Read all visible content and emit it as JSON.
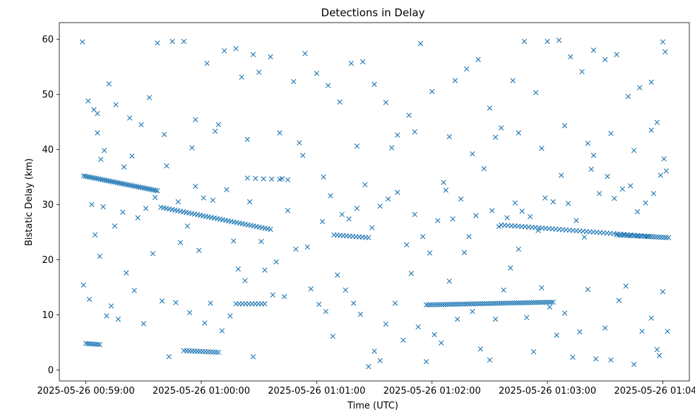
{
  "chart_data": {
    "type": "scatter",
    "title": "Detections in Delay",
    "xlabel": "Time (UTC)",
    "ylabel": "Bistatic Delay (km)",
    "marker": "x",
    "color": "#1f77b4",
    "x_unit": "minutes since 2025-05-26 00:59:00",
    "xlim": [
      -0.23,
      5.23
    ],
    "ylim": [
      -2,
      63
    ],
    "x_ticks": [
      {
        "value": 0,
        "label": "2025-05-26 00:59:00"
      },
      {
        "value": 1,
        "label": "2025-05-26 01:00:00"
      },
      {
        "value": 2,
        "label": "2025-05-26 01:01:00"
      },
      {
        "value": 3,
        "label": "2025-05-26 01:02:00"
      },
      {
        "value": 4,
        "label": "2025-05-26 01:03:00"
      },
      {
        "value": 5,
        "label": "2025-05-26 01:04:00"
      }
    ],
    "y_ticks": [
      {
        "value": 0,
        "label": "0"
      },
      {
        "value": 10,
        "label": "10"
      },
      {
        "value": 20,
        "label": "20"
      },
      {
        "value": 30,
        "label": "30"
      },
      {
        "value": 40,
        "label": "40"
      },
      {
        "value": 50,
        "label": "50"
      },
      {
        "value": 60,
        "label": "60"
      }
    ],
    "grid": false,
    "tracks": [
      {
        "name": "track-a",
        "x_start": -0.02,
        "x_end": 0.62,
        "y_start": 35.2,
        "y_end": 32.5,
        "count": 40
      },
      {
        "name": "track-b",
        "x_start": 0.65,
        "x_end": 1.6,
        "y_start": 29.5,
        "y_end": 25.5,
        "count": 40
      },
      {
        "name": "track-c",
        "x_start": 3.6,
        "x_end": 4.9,
        "y_start": 26.3,
        "y_end": 24.2,
        "count": 45
      },
      {
        "name": "track-d",
        "x_start": 2.95,
        "x_end": 4.05,
        "y_start": 11.8,
        "y_end": 12.3,
        "count": 60
      },
      {
        "name": "track-e",
        "x_start": 0.85,
        "x_end": 1.15,
        "y_start": 3.5,
        "y_end": 3.2,
        "count": 14
      },
      {
        "name": "track-f",
        "x_start": 4.6,
        "x_end": 5.05,
        "y_start": 24.5,
        "y_end": 24.0,
        "count": 22
      },
      {
        "name": "track-g",
        "x_start": 1.3,
        "x_end": 1.55,
        "y_start": 12.0,
        "y_end": 12.0,
        "count": 10
      },
      {
        "name": "track-h",
        "x_start": 0.0,
        "x_end": 0.12,
        "y_start": 4.8,
        "y_end": 4.6,
        "count": 8
      },
      {
        "name": "track-i",
        "x_start": 1.4,
        "x_end": 1.75,
        "y_start": 34.8,
        "y_end": 34.5,
        "count": 6
      },
      {
        "name": "track-j",
        "x_start": 2.15,
        "x_end": 2.45,
        "y_start": 24.5,
        "y_end": 24.0,
        "count": 12
      }
    ],
    "points": [
      [
        -0.03,
        59.5
      ],
      [
        0.02,
        48.8
      ],
      [
        0.07,
        47.2
      ],
      [
        0.1,
        46.5
      ],
      [
        0.13,
        38.2
      ],
      [
        0.16,
        39.8
      ],
      [
        0.2,
        51.9
      ],
      [
        0.26,
        48.1
      ],
      [
        0.33,
        36.8
      ],
      [
        0.4,
        38.8
      ],
      [
        0.48,
        44.5
      ],
      [
        0.55,
        49.4
      ],
      [
        0.62,
        59.3
      ],
      [
        0.75,
        59.6
      ],
      [
        0.85,
        59.6
      ],
      [
        0.95,
        45.4
      ],
      [
        1.05,
        55.6
      ],
      [
        1.15,
        44.5
      ],
      [
        1.2,
        57.9
      ],
      [
        1.3,
        58.3
      ],
      [
        1.35,
        53.1
      ],
      [
        1.45,
        57.2
      ],
      [
        1.5,
        54.0
      ],
      [
        1.6,
        56.8
      ],
      [
        1.7,
        34.7
      ],
      [
        1.8,
        52.3
      ],
      [
        1.9,
        57.4
      ],
      [
        2.0,
        53.8
      ],
      [
        2.1,
        51.6
      ],
      [
        2.2,
        48.6
      ],
      [
        2.3,
        55.6
      ],
      [
        2.4,
        55.9
      ],
      [
        2.5,
        51.8
      ],
      [
        2.6,
        48.5
      ],
      [
        2.7,
        42.6
      ],
      [
        2.8,
        46.2
      ],
      [
        2.9,
        59.2
      ],
      [
        3.0,
        50.5
      ],
      [
        3.1,
        34.0
      ],
      [
        3.2,
        52.5
      ],
      [
        3.3,
        54.6
      ],
      [
        3.4,
        56.3
      ],
      [
        3.5,
        47.5
      ],
      [
        3.6,
        43.9
      ],
      [
        3.7,
        52.5
      ],
      [
        3.8,
        59.6
      ],
      [
        3.9,
        50.3
      ],
      [
        4.0,
        59.6
      ],
      [
        4.1,
        59.8
      ],
      [
        4.2,
        56.8
      ],
      [
        4.3,
        54.1
      ],
      [
        4.4,
        58.0
      ],
      [
        4.5,
        56.3
      ],
      [
        4.6,
        57.2
      ],
      [
        4.7,
        49.6
      ],
      [
        4.8,
        51.2
      ],
      [
        4.9,
        52.2
      ],
      [
        5.0,
        59.5
      ],
      [
        5.02,
        57.7
      ],
      [
        4.95,
        44.9
      ],
      [
        -0.02,
        15.4
      ],
      [
        0.03,
        12.8
      ],
      [
        0.08,
        24.5
      ],
      [
        0.12,
        20.6
      ],
      [
        0.18,
        9.8
      ],
      [
        0.22,
        11.6
      ],
      [
        0.28,
        9.2
      ],
      [
        0.35,
        17.6
      ],
      [
        0.42,
        14.4
      ],
      [
        0.5,
        8.4
      ],
      [
        0.58,
        21.1
      ],
      [
        0.66,
        12.5
      ],
      [
        0.72,
        2.4
      ],
      [
        0.78,
        12.2
      ],
      [
        0.82,
        23.1
      ],
      [
        0.9,
        10.4
      ],
      [
        0.98,
        21.7
      ],
      [
        1.03,
        8.5
      ],
      [
        1.08,
        12.1
      ],
      [
        1.18,
        7.1
      ],
      [
        1.25,
        9.8
      ],
      [
        1.32,
        18.3
      ],
      [
        1.38,
        16.2
      ],
      [
        1.45,
        2.4
      ],
      [
        1.55,
        18.1
      ],
      [
        1.62,
        13.6
      ],
      [
        1.72,
        13.3
      ],
      [
        1.82,
        21.9
      ],
      [
        1.95,
        14.7
      ],
      [
        2.02,
        11.9
      ],
      [
        2.08,
        10.6
      ],
      [
        2.14,
        6.1
      ],
      [
        2.18,
        17.2
      ],
      [
        2.25,
        14.5
      ],
      [
        2.32,
        12.1
      ],
      [
        2.38,
        10.1
      ],
      [
        2.45,
        0.6
      ],
      [
        2.5,
        3.4
      ],
      [
        2.55,
        1.7
      ],
      [
        2.6,
        8.3
      ],
      [
        2.68,
        12.1
      ],
      [
        2.75,
        5.4
      ],
      [
        2.82,
        17.5
      ],
      [
        2.88,
        7.8
      ],
      [
        2.95,
        1.5
      ],
      [
        3.02,
        6.4
      ],
      [
        3.08,
        4.9
      ],
      [
        3.15,
        16.1
      ],
      [
        3.22,
        9.2
      ],
      [
        3.28,
        21.3
      ],
      [
        3.35,
        10.6
      ],
      [
        3.42,
        3.8
      ],
      [
        3.5,
        1.8
      ],
      [
        3.55,
        9.2
      ],
      [
        3.62,
        14.5
      ],
      [
        3.68,
        18.5
      ],
      [
        3.75,
        21.9
      ],
      [
        3.82,
        9.5
      ],
      [
        3.88,
        3.3
      ],
      [
        3.95,
        14.9
      ],
      [
        4.02,
        11.4
      ],
      [
        4.08,
        6.3
      ],
      [
        4.15,
        10.3
      ],
      [
        4.22,
        2.3
      ],
      [
        4.28,
        6.9
      ],
      [
        4.35,
        14.6
      ],
      [
        4.42,
        2.0
      ],
      [
        4.5,
        7.6
      ],
      [
        4.55,
        1.8
      ],
      [
        4.62,
        12.6
      ],
      [
        4.68,
        15.2
      ],
      [
        4.75,
        1.0
      ],
      [
        4.82,
        7.0
      ],
      [
        4.9,
        9.4
      ],
      [
        4.95,
        3.7
      ],
      [
        5.0,
        14.2
      ],
      [
        5.04,
        7.0
      ],
      [
        4.97,
        2.6
      ],
      [
        0.05,
        30.0
      ],
      [
        0.15,
        29.6
      ],
      [
        0.25,
        26.1
      ],
      [
        0.32,
        28.6
      ],
      [
        0.45,
        27.6
      ],
      [
        0.52,
        29.3
      ],
      [
        0.6,
        31.3
      ],
      [
        0.7,
        37.0
      ],
      [
        0.8,
        30.5
      ],
      [
        0.88,
        26.1
      ],
      [
        0.95,
        33.3
      ],
      [
        1.02,
        31.2
      ],
      [
        1.1,
        30.8
      ],
      [
        1.22,
        32.7
      ],
      [
        1.28,
        23.4
      ],
      [
        1.42,
        30.5
      ],
      [
        1.52,
        23.3
      ],
      [
        1.65,
        19.6
      ],
      [
        1.75,
        28.9
      ],
      [
        1.85,
        41.2
      ],
      [
        1.92,
        22.3
      ],
      [
        2.05,
        26.9
      ],
      [
        2.12,
        31.6
      ],
      [
        2.22,
        28.2
      ],
      [
        2.28,
        27.4
      ],
      [
        2.35,
        29.3
      ],
      [
        2.42,
        33.6
      ],
      [
        2.48,
        25.8
      ],
      [
        2.55,
        29.7
      ],
      [
        2.62,
        31.0
      ],
      [
        2.7,
        32.2
      ],
      [
        2.78,
        22.7
      ],
      [
        2.85,
        28.2
      ],
      [
        2.92,
        24.2
      ],
      [
        2.98,
        21.2
      ],
      [
        3.05,
        27.1
      ],
      [
        3.12,
        32.6
      ],
      [
        3.18,
        27.4
      ],
      [
        3.25,
        31.0
      ],
      [
        3.32,
        24.2
      ],
      [
        3.38,
        28.0
      ],
      [
        3.45,
        36.5
      ],
      [
        3.52,
        28.9
      ],
      [
        3.58,
        26.0
      ],
      [
        3.65,
        27.6
      ],
      [
        3.72,
        30.3
      ],
      [
        3.78,
        28.8
      ],
      [
        3.85,
        27.8
      ],
      [
        3.92,
        25.3
      ],
      [
        3.98,
        31.2
      ],
      [
        4.05,
        30.5
      ],
      [
        4.12,
        35.3
      ],
      [
        4.18,
        30.2
      ],
      [
        4.25,
        27.1
      ],
      [
        4.32,
        24.1
      ],
      [
        4.38,
        36.4
      ],
      [
        4.45,
        32.0
      ],
      [
        4.52,
        35.1
      ],
      [
        4.58,
        31.1
      ],
      [
        4.65,
        32.8
      ],
      [
        4.72,
        33.4
      ],
      [
        4.78,
        28.7
      ],
      [
        4.85,
        30.3
      ],
      [
        4.92,
        32.0
      ],
      [
        4.98,
        35.3
      ],
      [
        5.03,
        36.1
      ],
      [
        0.1,
        43.0
      ],
      [
        0.38,
        45.7
      ],
      [
        0.68,
        42.7
      ],
      [
        0.92,
        40.3
      ],
      [
        1.12,
        43.3
      ],
      [
        1.4,
        41.8
      ],
      [
        1.68,
        43.0
      ],
      [
        1.88,
        38.9
      ],
      [
        2.06,
        35.0
      ],
      [
        2.35,
        40.6
      ],
      [
        2.65,
        40.3
      ],
      [
        2.85,
        43.2
      ],
      [
        3.15,
        42.3
      ],
      [
        3.35,
        39.2
      ],
      [
        3.55,
        42.2
      ],
      [
        3.75,
        43.0
      ],
      [
        3.95,
        40.2
      ],
      [
        4.15,
        44.3
      ],
      [
        4.35,
        41.1
      ],
      [
        4.55,
        42.9
      ],
      [
        4.75,
        39.8
      ],
      [
        4.9,
        43.5
      ],
      [
        5.01,
        38.3
      ],
      [
        4.4,
        38.9
      ]
    ]
  }
}
